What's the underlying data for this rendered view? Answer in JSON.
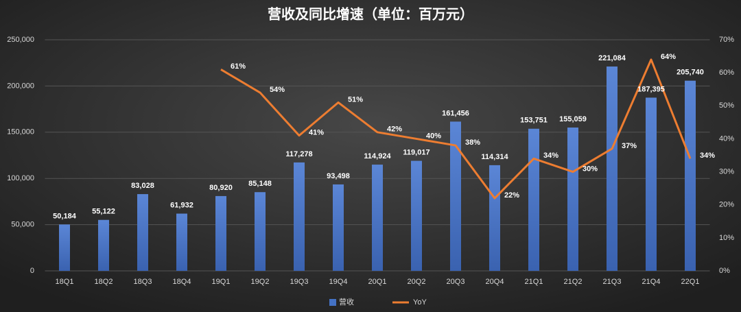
{
  "chart_data": {
    "type": "bar_line",
    "title": "营收及同比增速（单位：百万元）",
    "categories": [
      "18Q1",
      "18Q2",
      "18Q3",
      "18Q4",
      "19Q1",
      "19Q2",
      "19Q3",
      "19Q4",
      "20Q1",
      "20Q2",
      "20Q3",
      "20Q4",
      "21Q1",
      "21Q2",
      "21Q3",
      "21Q4",
      "22Q1"
    ],
    "series": [
      {
        "name": "营收",
        "type": "bar",
        "color": "#4472c4",
        "values": [
          50184,
          55122,
          83028,
          61932,
          80920,
          85148,
          117278,
          93498,
          114924,
          119017,
          161456,
          114314,
          153751,
          155059,
          221084,
          187395,
          205740
        ],
        "value_labels": [
          "50,184",
          "55,122",
          "83,028",
          "61,932",
          "80,920",
          "85,148",
          "117,278",
          "93,498",
          "114,924",
          "119,017",
          "161,456",
          "114,314",
          "153,751",
          "155,059",
          "221,084",
          "187,395",
          "205,740"
        ]
      },
      {
        "name": "YoY",
        "type": "line",
        "axis": "y2",
        "color": "#ed7d31",
        "values": [
          null,
          null,
          null,
          null,
          61,
          54,
          41,
          51,
          42,
          40,
          38,
          22,
          34,
          30,
          37,
          64,
          34
        ],
        "value_labels": [
          null,
          null,
          null,
          null,
          "61%",
          "54%",
          "41%",
          "51%",
          "42%",
          "40%",
          "38%",
          "22%",
          "34%",
          "30%",
          "37%",
          "64%",
          "34%"
        ]
      }
    ],
    "ylim": [
      0,
      250000
    ],
    "yticks": [
      0,
      {
        "value": 50000,
        "label": "50,000"
      },
      {
        "value": 100000,
        "label": "100,000"
      },
      {
        "value": 150000,
        "label": "150,000"
      },
      {
        "value": 200000,
        "label": "200,000"
      },
      {
        "value": 250000,
        "label": "250,000"
      }
    ],
    "y2lim": [
      0,
      70
    ],
    "y2ticks": [
      {
        "value": 0,
        "label": "0%"
      },
      {
        "value": 10,
        "label": "10%"
      },
      {
        "value": 20,
        "label": "20%"
      },
      {
        "value": 30,
        "label": "30%"
      },
      {
        "value": 40,
        "label": "40%"
      },
      {
        "value": 50,
        "label": "50%"
      },
      {
        "value": 60,
        "label": "60%"
      },
      {
        "value": 70,
        "label": "70%"
      }
    ],
    "grid": true,
    "legend": "bottom"
  }
}
